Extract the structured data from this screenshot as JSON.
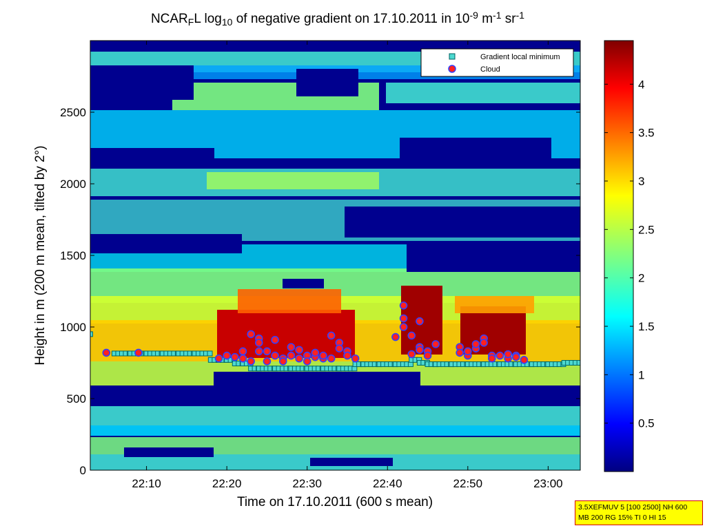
{
  "chart_data": {
    "type": "heatmap",
    "title": {
      "pre": "NCAR",
      "sub1": "F",
      "mid1": "L log",
      "sub2": "10",
      "mid2": " of negative gradient on 17.10.2011 in 10",
      "sup1": "-9",
      "mid3": " m",
      "sup2": "-1",
      "mid4": " sr",
      "sup3": "-1"
    },
    "xlabel": "Time on 17.10.2011 (600 s mean)",
    "ylabel": "Height in m (200 m mean, tilted by 2°)",
    "xlim": [
      "22:03",
      "23:04"
    ],
    "ylim": [
      0,
      3000
    ],
    "x_ticks": [
      "22:10",
      "22:20",
      "22:30",
      "22:40",
      "22:50",
      "23:00"
    ],
    "y_ticks": [
      0,
      500,
      1000,
      1500,
      2000,
      2500
    ],
    "colorbar": {
      "colormap": "jet",
      "range": [
        0,
        4.45
      ],
      "ticks": [
        "0.5",
        "1",
        "1.5",
        "2",
        "2.5",
        "3",
        "3.5",
        "4"
      ]
    },
    "legend": {
      "placement": "top-right",
      "entries": [
        {
          "label": "Gradient local minimum",
          "marker": "square",
          "color": "#4dd9d0"
        },
        {
          "label": "Cloud",
          "marker": "circle",
          "color": "#ff2020",
          "edge": "#3040ff"
        }
      ]
    },
    "series": [
      {
        "name": "Gradient local minimum",
        "points": [
          [
            "22:03",
            950
          ],
          [
            "22:06",
            815
          ],
          [
            "22:08",
            815
          ],
          [
            "22:10",
            815
          ],
          [
            "22:12",
            815
          ],
          [
            "22:14",
            815
          ],
          [
            "22:16",
            815
          ],
          [
            "22:18",
            815
          ],
          [
            "22:19",
            770
          ],
          [
            "22:20",
            770
          ],
          [
            "22:21",
            770
          ],
          [
            "22:22",
            745
          ],
          [
            "22:23",
            745
          ],
          [
            "22:24",
            710
          ],
          [
            "22:26",
            710
          ],
          [
            "22:28",
            710
          ],
          [
            "22:30",
            710
          ],
          [
            "22:32",
            710
          ],
          [
            "22:34",
            710
          ],
          [
            "22:36",
            710
          ],
          [
            "22:37",
            740
          ],
          [
            "22:39",
            740
          ],
          [
            "22:41",
            740
          ],
          [
            "22:43",
            740
          ],
          [
            "22:44",
            770
          ],
          [
            "22:45",
            750
          ],
          [
            "22:46",
            740
          ],
          [
            "22:48",
            740
          ],
          [
            "22:50",
            740
          ],
          [
            "22:52",
            740
          ],
          [
            "22:54",
            740
          ],
          [
            "22:56",
            740
          ],
          [
            "22:58",
            740
          ],
          [
            "23:00",
            740
          ],
          [
            "23:02",
            740
          ],
          [
            "23:04",
            750
          ]
        ]
      },
      {
        "name": "Cloud",
        "points": [
          [
            "22:05",
            820
          ],
          [
            "22:09",
            820
          ],
          [
            "22:19",
            780
          ],
          [
            "22:20",
            800
          ],
          [
            "22:21",
            790
          ],
          [
            "22:22",
            780
          ],
          [
            "22:22",
            830
          ],
          [
            "22:23",
            760
          ],
          [
            "22:23",
            950
          ],
          [
            "22:24",
            920
          ],
          [
            "22:24",
            830
          ],
          [
            "22:24",
            890
          ],
          [
            "22:25",
            760
          ],
          [
            "22:25",
            830
          ],
          [
            "22:26",
            800
          ],
          [
            "22:26",
            910
          ],
          [
            "22:27",
            780
          ],
          [
            "22:27",
            760
          ],
          [
            "22:28",
            860
          ],
          [
            "22:28",
            800
          ],
          [
            "22:29",
            780
          ],
          [
            "22:29",
            840
          ],
          [
            "22:30",
            800
          ],
          [
            "22:30",
            760
          ],
          [
            "22:31",
            790
          ],
          [
            "22:31",
            820
          ],
          [
            "22:32",
            780
          ],
          [
            "22:32",
            800
          ],
          [
            "22:33",
            780
          ],
          [
            "22:33",
            940
          ],
          [
            "22:34",
            890
          ],
          [
            "22:34",
            850
          ],
          [
            "22:35",
            830
          ],
          [
            "22:35",
            800
          ],
          [
            "22:36",
            780
          ],
          [
            "22:41",
            930
          ],
          [
            "22:42",
            1150
          ],
          [
            "22:42",
            1060
          ],
          [
            "22:42",
            1000
          ],
          [
            "22:43",
            940
          ],
          [
            "22:43",
            810
          ],
          [
            "22:44",
            860
          ],
          [
            "22:44",
            840
          ],
          [
            "22:44",
            1040
          ],
          [
            "22:45",
            830
          ],
          [
            "22:45",
            800
          ],
          [
            "22:46",
            880
          ],
          [
            "22:49",
            860
          ],
          [
            "22:49",
            820
          ],
          [
            "22:50",
            800
          ],
          [
            "22:50",
            830
          ],
          [
            "22:51",
            850
          ],
          [
            "22:51",
            880
          ],
          [
            "22:52",
            920
          ],
          [
            "22:52",
            890
          ],
          [
            "22:53",
            800
          ],
          [
            "22:53",
            780
          ],
          [
            "22:54",
            800
          ],
          [
            "22:55",
            780
          ],
          [
            "22:55",
            810
          ],
          [
            "22:56",
            800
          ],
          [
            "22:56",
            790
          ],
          [
            "22:57",
            770
          ]
        ]
      }
    ]
  },
  "info_box": {
    "line1": "3.5XEFMUV 5 [100 2500] NH 600",
    "line2": "MB 200 RG 15% TI 0 HI 15"
  }
}
